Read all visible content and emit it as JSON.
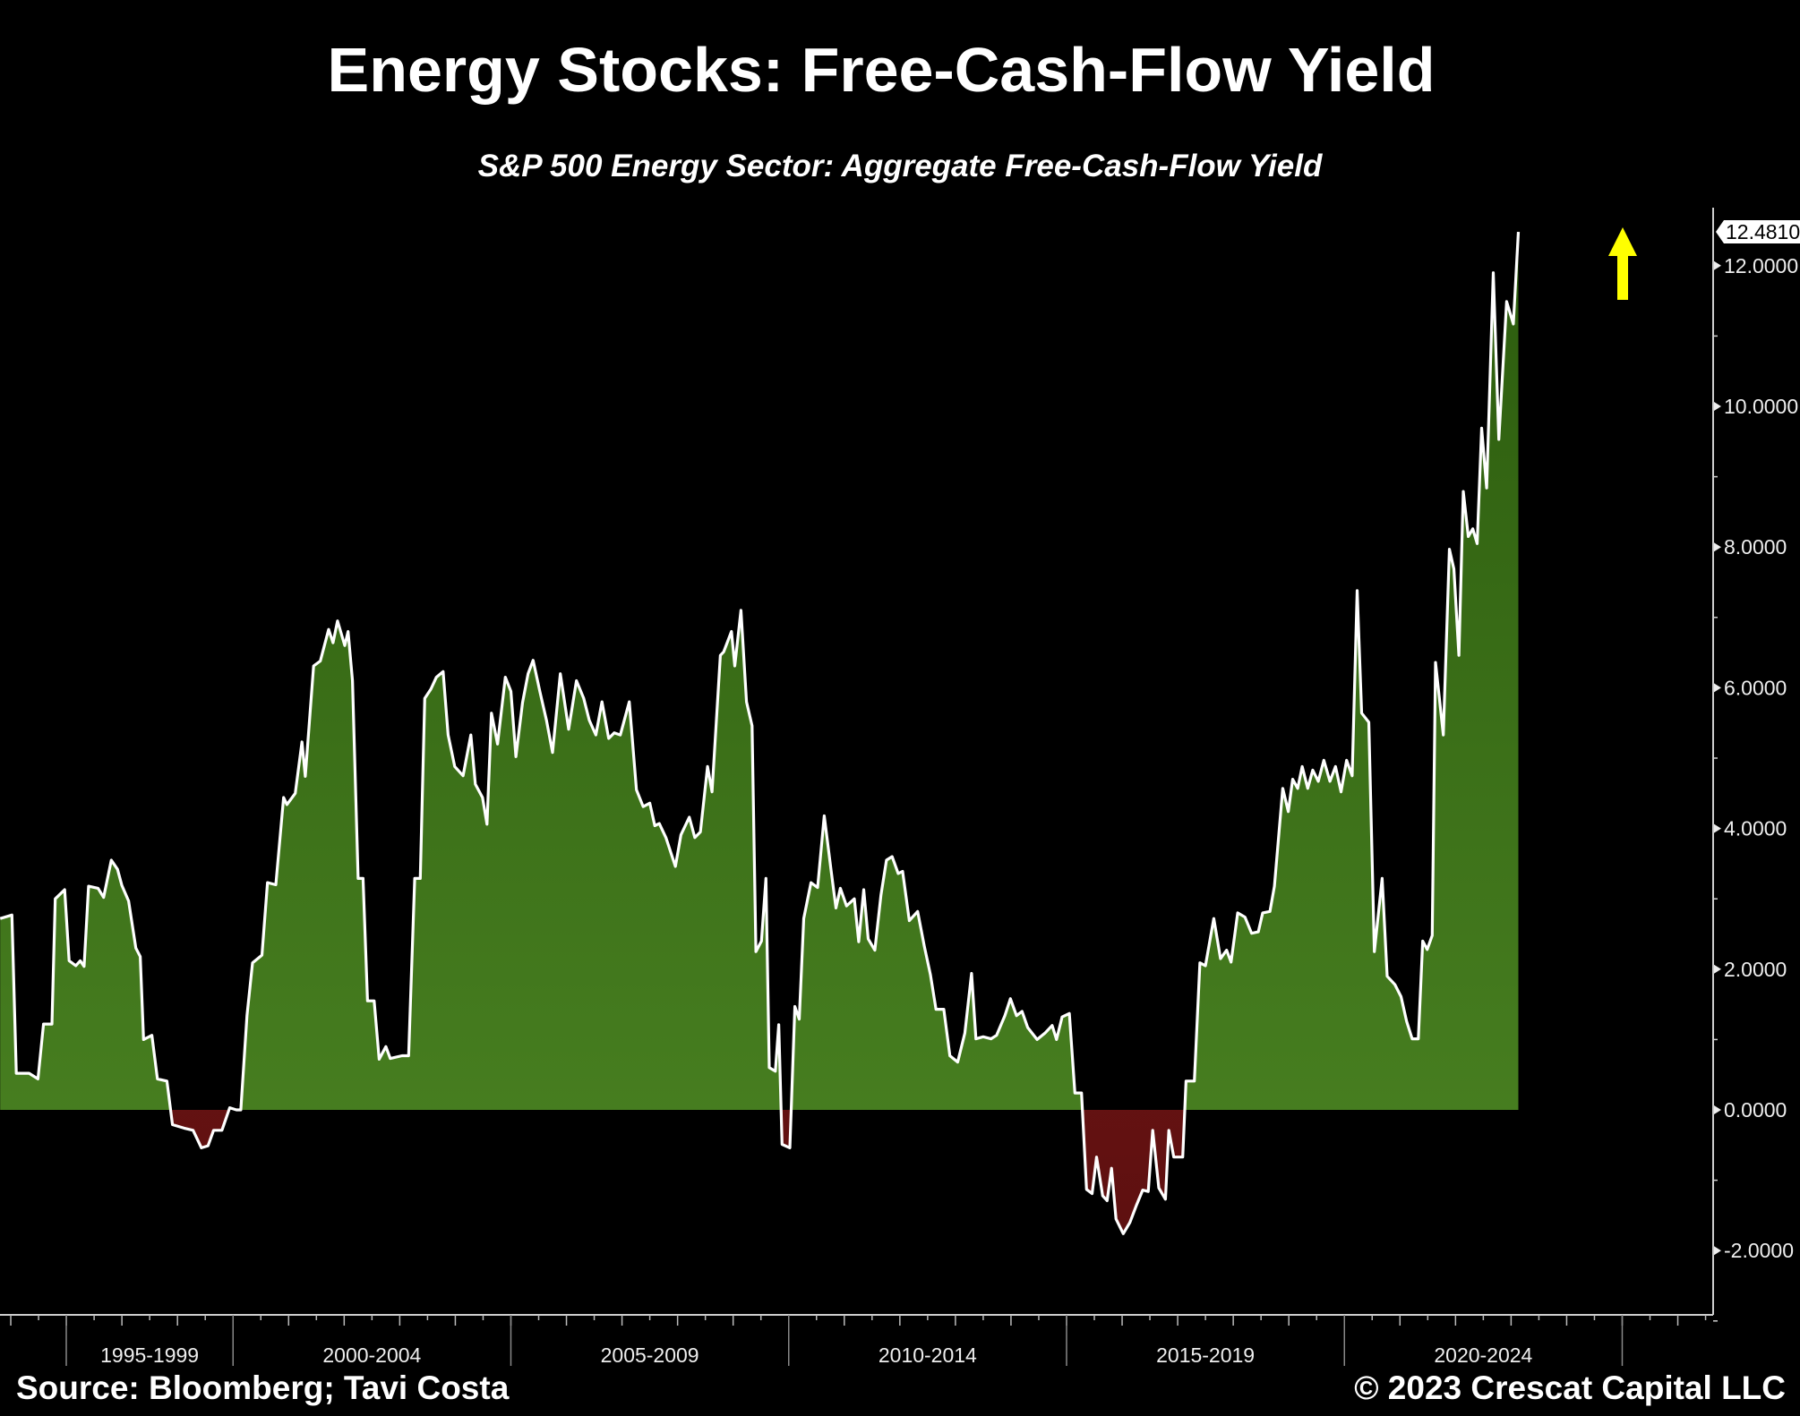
{
  "chart_data": {
    "type": "area",
    "title": "Energy Stocks: Free-Cash-Flow Yield",
    "subtitle": "S&P 500 Energy Sector: Aggregate Free-Cash-Flow Yield",
    "xlabel": "",
    "ylabel": "",
    "ylim": [
      -2.9,
      12.9
    ],
    "xlim": [
      1995.81,
      2026.6
    ],
    "yticks": [
      "12.0000",
      "10.0000",
      "8.0000",
      "6.0000",
      "4.0000",
      "2.0000",
      "0.0000",
      "-2.0000"
    ],
    "ytick_values": [
      12,
      10,
      8,
      6,
      4,
      2,
      0,
      -2
    ],
    "xtick_labels": [
      {
        "label": "1995-1999",
        "from": 1995,
        "to": 2000
      },
      {
        "label": "2000-2004",
        "from": 2000,
        "to": 2005
      },
      {
        "label": "2005-2009",
        "from": 2005,
        "to": 2010
      },
      {
        "label": "2010-2014",
        "from": 2010,
        "to": 2015
      },
      {
        "label": "2015-2019",
        "from": 2015,
        "to": 2020
      },
      {
        "label": "2020-2024",
        "from": 2020,
        "to": 2025
      }
    ],
    "last_value_label": "12.4810",
    "last_value": 12.481,
    "grid": false,
    "colors": {
      "positive": "#3f7a1a",
      "positive_top": "#2c5c0e",
      "negative": "#7a1818",
      "line": "#ffffff",
      "arrow": "#ffff00"
    },
    "points": [
      [
        1995.81,
        2.72
      ],
      [
        1996.02,
        2.77
      ],
      [
        1996.1,
        0.52
      ],
      [
        1996.33,
        0.52
      ],
      [
        1996.49,
        0.44
      ],
      [
        1996.59,
        1.22
      ],
      [
        1996.74,
        1.22
      ],
      [
        1996.8,
        3.0
      ],
      [
        1996.97,
        3.13
      ],
      [
        1997.05,
        2.12
      ],
      [
        1997.17,
        2.05
      ],
      [
        1997.25,
        2.12
      ],
      [
        1997.32,
        2.04
      ],
      [
        1997.4,
        3.18
      ],
      [
        1997.57,
        3.15
      ],
      [
        1997.67,
        3.02
      ],
      [
        1997.81,
        3.55
      ],
      [
        1997.92,
        3.42
      ],
      [
        1998.0,
        3.19
      ],
      [
        1998.12,
        2.97
      ],
      [
        1998.25,
        2.3
      ],
      [
        1998.33,
        2.18
      ],
      [
        1998.39,
        1.0
      ],
      [
        1998.54,
        1.06
      ],
      [
        1998.64,
        0.44
      ],
      [
        1998.81,
        0.41
      ],
      [
        1998.91,
        -0.21
      ],
      [
        1999.12,
        -0.26
      ],
      [
        1999.28,
        -0.29
      ],
      [
        1999.43,
        -0.54
      ],
      [
        1999.55,
        -0.51
      ],
      [
        1999.65,
        -0.29
      ],
      [
        1999.8,
        -0.29
      ],
      [
        1999.94,
        0.03
      ],
      [
        2000.06,
        0
      ],
      [
        2000.14,
        0
      ],
      [
        2000.25,
        1.34
      ],
      [
        2000.35,
        2.09
      ],
      [
        2000.52,
        2.2
      ],
      [
        2000.62,
        3.23
      ],
      [
        2000.77,
        3.2
      ],
      [
        2000.91,
        4.44
      ],
      [
        2000.97,
        4.34
      ],
      [
        2001.12,
        4.5
      ],
      [
        2001.24,
        5.23
      ],
      [
        2001.3,
        4.74
      ],
      [
        2001.45,
        6.31
      ],
      [
        2001.57,
        6.38
      ],
      [
        2001.72,
        6.83
      ],
      [
        2001.8,
        6.64
      ],
      [
        2001.88,
        6.95
      ],
      [
        2002.01,
        6.6
      ],
      [
        2002.07,
        6.8
      ],
      [
        2002.15,
        6.1
      ],
      [
        2002.25,
        3.29
      ],
      [
        2002.34,
        3.29
      ],
      [
        2002.42,
        1.55
      ],
      [
        2002.54,
        1.55
      ],
      [
        2002.63,
        0.72
      ],
      [
        2002.75,
        0.9
      ],
      [
        2002.83,
        0.73
      ],
      [
        2003.04,
        0.77
      ],
      [
        2003.16,
        0.77
      ],
      [
        2003.27,
        3.29
      ],
      [
        2003.37,
        3.29
      ],
      [
        2003.45,
        5.85
      ],
      [
        2003.56,
        5.98
      ],
      [
        2003.66,
        6.15
      ],
      [
        2003.78,
        6.23
      ],
      [
        2003.87,
        5.33
      ],
      [
        2003.99,
        4.88
      ],
      [
        2004.14,
        4.75
      ],
      [
        2004.28,
        5.33
      ],
      [
        2004.36,
        4.63
      ],
      [
        2004.49,
        4.44
      ],
      [
        2004.57,
        4.06
      ],
      [
        2004.65,
        5.64
      ],
      [
        2004.76,
        5.2
      ],
      [
        2004.9,
        6.15
      ],
      [
        2005.0,
        5.95
      ],
      [
        2005.09,
        5.02
      ],
      [
        2005.21,
        5.79
      ],
      [
        2005.31,
        6.2
      ],
      [
        2005.4,
        6.39
      ],
      [
        2005.52,
        5.95
      ],
      [
        2005.64,
        5.54
      ],
      [
        2005.75,
        5.08
      ],
      [
        2005.89,
        6.2
      ],
      [
        2006.04,
        5.41
      ],
      [
        2006.18,
        6.1
      ],
      [
        2006.31,
        5.85
      ],
      [
        2006.41,
        5.54
      ],
      [
        2006.53,
        5.33
      ],
      [
        2006.64,
        5.8
      ],
      [
        2006.76,
        5.28
      ],
      [
        2006.86,
        5.36
      ],
      [
        2006.97,
        5.33
      ],
      [
        2007.13,
        5.8
      ],
      [
        2007.26,
        4.55
      ],
      [
        2007.38,
        4.31
      ],
      [
        2007.5,
        4.36
      ],
      [
        2007.59,
        4.04
      ],
      [
        2007.67,
        4.07
      ],
      [
        2007.79,
        3.87
      ],
      [
        2007.96,
        3.46
      ],
      [
        2008.06,
        3.91
      ],
      [
        2008.21,
        4.16
      ],
      [
        2008.31,
        3.87
      ],
      [
        2008.41,
        3.95
      ],
      [
        2008.54,
        4.88
      ],
      [
        2008.62,
        4.52
      ],
      [
        2008.77,
        6.46
      ],
      [
        2008.83,
        6.51
      ],
      [
        2008.97,
        6.8
      ],
      [
        2009.03,
        6.31
      ],
      [
        2009.14,
        7.1
      ],
      [
        2009.24,
        5.8
      ],
      [
        2009.34,
        5.46
      ],
      [
        2009.41,
        2.25
      ],
      [
        2009.51,
        2.4
      ],
      [
        2009.59,
        3.29
      ],
      [
        2009.65,
        0.6
      ],
      [
        2009.76,
        0.55
      ],
      [
        2009.82,
        1.21
      ],
      [
        2009.88,
        -0.49
      ],
      [
        2010.02,
        -0.54
      ],
      [
        2010.11,
        1.47
      ],
      [
        2010.19,
        1.29
      ],
      [
        2010.27,
        2.72
      ],
      [
        2010.4,
        3.23
      ],
      [
        2010.52,
        3.16
      ],
      [
        2010.64,
        4.18
      ],
      [
        2010.77,
        3.36
      ],
      [
        2010.85,
        2.87
      ],
      [
        2010.93,
        3.15
      ],
      [
        2011.04,
        2.9
      ],
      [
        2011.18,
        3.0
      ],
      [
        2011.26,
        2.39
      ],
      [
        2011.35,
        3.13
      ],
      [
        2011.43,
        2.43
      ],
      [
        2011.55,
        2.27
      ],
      [
        2011.66,
        3.05
      ],
      [
        2011.76,
        3.55
      ],
      [
        2011.86,
        3.6
      ],
      [
        2011.97,
        3.36
      ],
      [
        2012.05,
        3.39
      ],
      [
        2012.17,
        2.69
      ],
      [
        2012.32,
        2.82
      ],
      [
        2012.44,
        2.33
      ],
      [
        2012.55,
        1.92
      ],
      [
        2012.65,
        1.43
      ],
      [
        2012.79,
        1.43
      ],
      [
        2012.9,
        0.77
      ],
      [
        2013.04,
        0.68
      ],
      [
        2013.17,
        1.09
      ],
      [
        2013.29,
        1.94
      ],
      [
        2013.37,
        1.01
      ],
      [
        2013.5,
        1.04
      ],
      [
        2013.64,
        1.01
      ],
      [
        2013.74,
        1.06
      ],
      [
        2013.89,
        1.34
      ],
      [
        2013.99,
        1.58
      ],
      [
        2014.1,
        1.34
      ],
      [
        2014.2,
        1.4
      ],
      [
        2014.3,
        1.17
      ],
      [
        2014.47,
        1.0
      ],
      [
        2014.61,
        1.09
      ],
      [
        2014.74,
        1.2
      ],
      [
        2014.82,
        1.0
      ],
      [
        2014.92,
        1.32
      ],
      [
        2015.05,
        1.37
      ],
      [
        2015.15,
        0.24
      ],
      [
        2015.27,
        0.24
      ],
      [
        2015.36,
        -1.13
      ],
      [
        2015.46,
        -1.19
      ],
      [
        2015.54,
        -0.67
      ],
      [
        2015.65,
        -1.22
      ],
      [
        2015.73,
        -1.29
      ],
      [
        2015.81,
        -0.83
      ],
      [
        2015.89,
        -1.55
      ],
      [
        2016.02,
        -1.76
      ],
      [
        2016.14,
        -1.6
      ],
      [
        2016.26,
        -1.35
      ],
      [
        2016.37,
        -1.14
      ],
      [
        2016.47,
        -1.16
      ],
      [
        2016.55,
        -0.29
      ],
      [
        2016.66,
        -1.11
      ],
      [
        2016.78,
        -1.27
      ],
      [
        2016.84,
        -0.29
      ],
      [
        2016.93,
        -0.67
      ],
      [
        2017.09,
        -0.67
      ],
      [
        2017.15,
        0.41
      ],
      [
        2017.3,
        0.41
      ],
      [
        2017.4,
        2.09
      ],
      [
        2017.5,
        2.05
      ],
      [
        2017.65,
        2.72
      ],
      [
        2017.77,
        2.15
      ],
      [
        2017.88,
        2.27
      ],
      [
        2017.96,
        2.1
      ],
      [
        2018.08,
        2.8
      ],
      [
        2018.21,
        2.74
      ],
      [
        2018.33,
        2.51
      ],
      [
        2018.45,
        2.53
      ],
      [
        2018.53,
        2.8
      ],
      [
        2018.66,
        2.82
      ],
      [
        2018.74,
        3.18
      ],
      [
        2018.89,
        4.57
      ],
      [
        2018.99,
        4.24
      ],
      [
        2019.07,
        4.7
      ],
      [
        2019.16,
        4.57
      ],
      [
        2019.24,
        4.88
      ],
      [
        2019.34,
        4.57
      ],
      [
        2019.43,
        4.83
      ],
      [
        2019.53,
        4.67
      ],
      [
        2019.63,
        4.97
      ],
      [
        2019.74,
        4.67
      ],
      [
        2019.84,
        4.88
      ],
      [
        2019.94,
        4.52
      ],
      [
        2020.04,
        4.97
      ],
      [
        2020.14,
        4.75
      ],
      [
        2020.23,
        7.38
      ],
      [
        2020.31,
        5.64
      ],
      [
        2020.44,
        5.51
      ],
      [
        2020.54,
        2.25
      ],
      [
        2020.68,
        3.29
      ],
      [
        2020.77,
        1.9
      ],
      [
        2020.91,
        1.78
      ],
      [
        2021.02,
        1.61
      ],
      [
        2021.12,
        1.26
      ],
      [
        2021.22,
        1.01
      ],
      [
        2021.33,
        1.01
      ],
      [
        2021.41,
        2.4
      ],
      [
        2021.49,
        2.28
      ],
      [
        2021.58,
        2.48
      ],
      [
        2021.64,
        6.36
      ],
      [
        2021.78,
        5.33
      ],
      [
        2021.89,
        7.97
      ],
      [
        2021.97,
        7.69
      ],
      [
        2022.06,
        6.46
      ],
      [
        2022.14,
        8.79
      ],
      [
        2022.23,
        8.15
      ],
      [
        2022.31,
        8.26
      ],
      [
        2022.39,
        8.05
      ],
      [
        2022.47,
        9.69
      ],
      [
        2022.56,
        8.84
      ],
      [
        2022.68,
        11.9
      ],
      [
        2022.78,
        9.53
      ],
      [
        2022.92,
        11.49
      ],
      [
        2023.04,
        11.17
      ],
      [
        2023.13,
        12.48
      ]
    ]
  },
  "footer": {
    "source": "Source: Bloomberg; Tavi Costa",
    "copyright": "© 2023 Crescat Capital LLC"
  }
}
